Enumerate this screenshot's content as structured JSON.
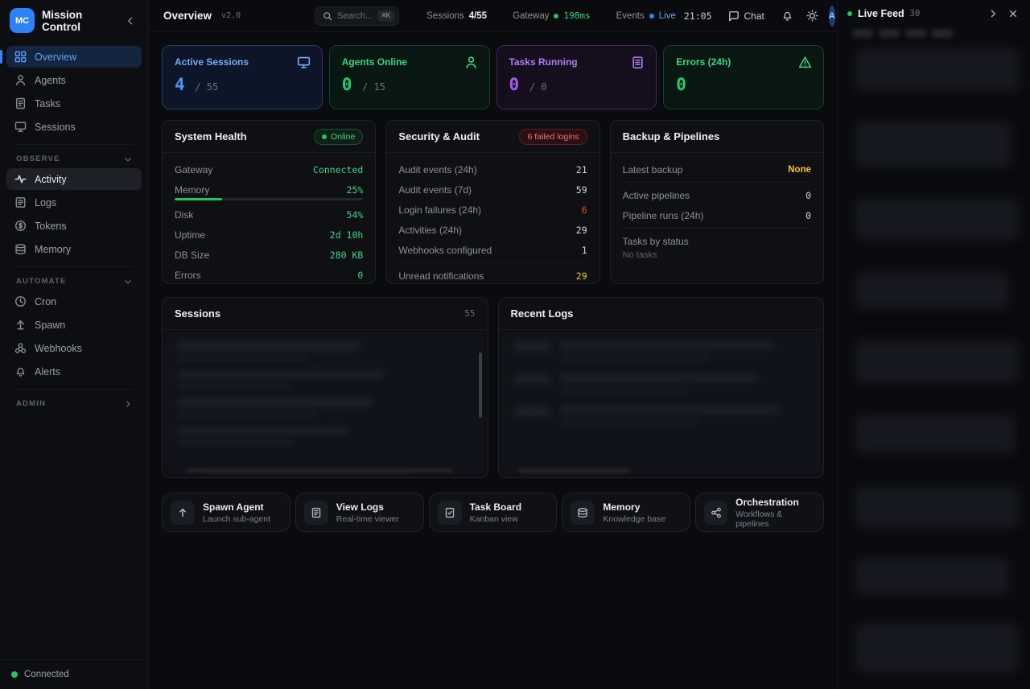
{
  "colors": {
    "accent_blue": "#3b82f6",
    "green": "#22c55e",
    "purple": "#a855f7",
    "red": "#ef4444",
    "amber": "#f5c23b"
  },
  "app": {
    "logo": "MC",
    "title": "Mission Control",
    "connection_status": "Connected"
  },
  "sidebar": {
    "primary": [
      {
        "label": "Overview",
        "icon": "grid-icon",
        "active": true
      },
      {
        "label": "Agents",
        "icon": "user-icon"
      },
      {
        "label": "Tasks",
        "icon": "file-icon"
      },
      {
        "label": "Sessions",
        "icon": "monitor-icon"
      }
    ],
    "sections": [
      {
        "label": "OBSERVE",
        "items": [
          {
            "label": "Activity",
            "icon": "activity-icon",
            "active": true
          },
          {
            "label": "Logs",
            "icon": "document-icon"
          },
          {
            "label": "Tokens",
            "icon": "coin-icon"
          },
          {
            "label": "Memory",
            "icon": "database-icon"
          }
        ]
      },
      {
        "label": "AUTOMATE",
        "items": [
          {
            "label": "Cron",
            "icon": "clock-icon"
          },
          {
            "label": "Spawn",
            "icon": "arrow-up-icon"
          },
          {
            "label": "Webhooks",
            "icon": "webhook-icon"
          },
          {
            "label": "Alerts",
            "icon": "bell-icon"
          }
        ]
      },
      {
        "label": "ADMIN",
        "items": []
      }
    ]
  },
  "header": {
    "title": "Overview",
    "version": "v2.0",
    "search": {
      "placeholder": "Search...",
      "shortcut": "⌘K"
    },
    "status": {
      "sessions_label": "Sessions",
      "sessions_value": "4/55",
      "gateway_label": "Gateway",
      "gateway_value": "198ms",
      "events_label": "Events",
      "events_value": "Live"
    },
    "time": "21:05",
    "chat_label": "Chat",
    "avatar_initial": "A"
  },
  "stats": [
    {
      "label": "Active Sessions",
      "value": "4",
      "separator": "/",
      "total": "55",
      "icon": "monitor-icon",
      "color": "blue"
    },
    {
      "label": "Agents Online",
      "value": "0",
      "separator": "/",
      "total": "15",
      "icon": "user-icon",
      "color": "green"
    },
    {
      "label": "Tasks Running",
      "value": "0",
      "separator": "/",
      "total": "0",
      "icon": "clipboard-icon",
      "color": "purple"
    },
    {
      "label": "Errors (24h)",
      "value": "0",
      "icon": "warning-icon",
      "color": "green"
    }
  ],
  "system_health": {
    "title": "System Health",
    "badge": "Online",
    "rows": [
      {
        "label": "Gateway",
        "value": "Connected"
      },
      {
        "label": "Memory",
        "value": "25%",
        "progress": 25
      },
      {
        "label": "Disk",
        "value": "54%"
      },
      {
        "label": "Uptime",
        "value": "2d 10h"
      },
      {
        "label": "DB Size",
        "value": "280 KB"
      },
      {
        "label": "Errors",
        "value": "0"
      }
    ]
  },
  "security_audit": {
    "title": "Security & Audit",
    "badge": "6 failed logins",
    "rows": [
      {
        "label": "Audit events (24h)",
        "value": "21",
        "tone": "default"
      },
      {
        "label": "Audit events (7d)",
        "value": "59",
        "tone": "default"
      },
      {
        "label": "Login failures (24h)",
        "value": "6",
        "tone": "red"
      },
      {
        "label": "Activities (24h)",
        "value": "29",
        "tone": "default"
      },
      {
        "label": "Webhooks configured",
        "value": "1",
        "tone": "default"
      },
      {
        "label": "Unread notifications",
        "value": "29",
        "tone": "amber"
      }
    ]
  },
  "backup_pipelines": {
    "title": "Backup & Pipelines",
    "rows": [
      {
        "label": "Latest backup",
        "value": "None",
        "tone": "amber"
      },
      {
        "label": "Active pipelines",
        "value": "0",
        "tone": "default"
      },
      {
        "label": "Pipeline runs (24h)",
        "value": "0",
        "tone": "default"
      }
    ],
    "tasks_by_status_label": "Tasks by status",
    "empty_text": "No tasks"
  },
  "sessions_panel": {
    "title": "Sessions",
    "count": "55"
  },
  "recent_logs_panel": {
    "title": "Recent Logs"
  },
  "quick_actions": [
    {
      "title": "Spawn Agent",
      "subtitle": "Launch sub-agent",
      "icon": "arrow-up-icon"
    },
    {
      "title": "View Logs",
      "subtitle": "Real-time viewer",
      "icon": "document-icon"
    },
    {
      "title": "Task Board",
      "subtitle": "Kanban view",
      "icon": "clipboard-check-icon"
    },
    {
      "title": "Memory",
      "subtitle": "Knowledge base",
      "icon": "database-icon"
    },
    {
      "title": "Orchestration",
      "subtitle": "Workflows & pipelines",
      "icon": "share-icon"
    }
  ],
  "live_feed": {
    "title": "Live Feed",
    "count": "30"
  }
}
